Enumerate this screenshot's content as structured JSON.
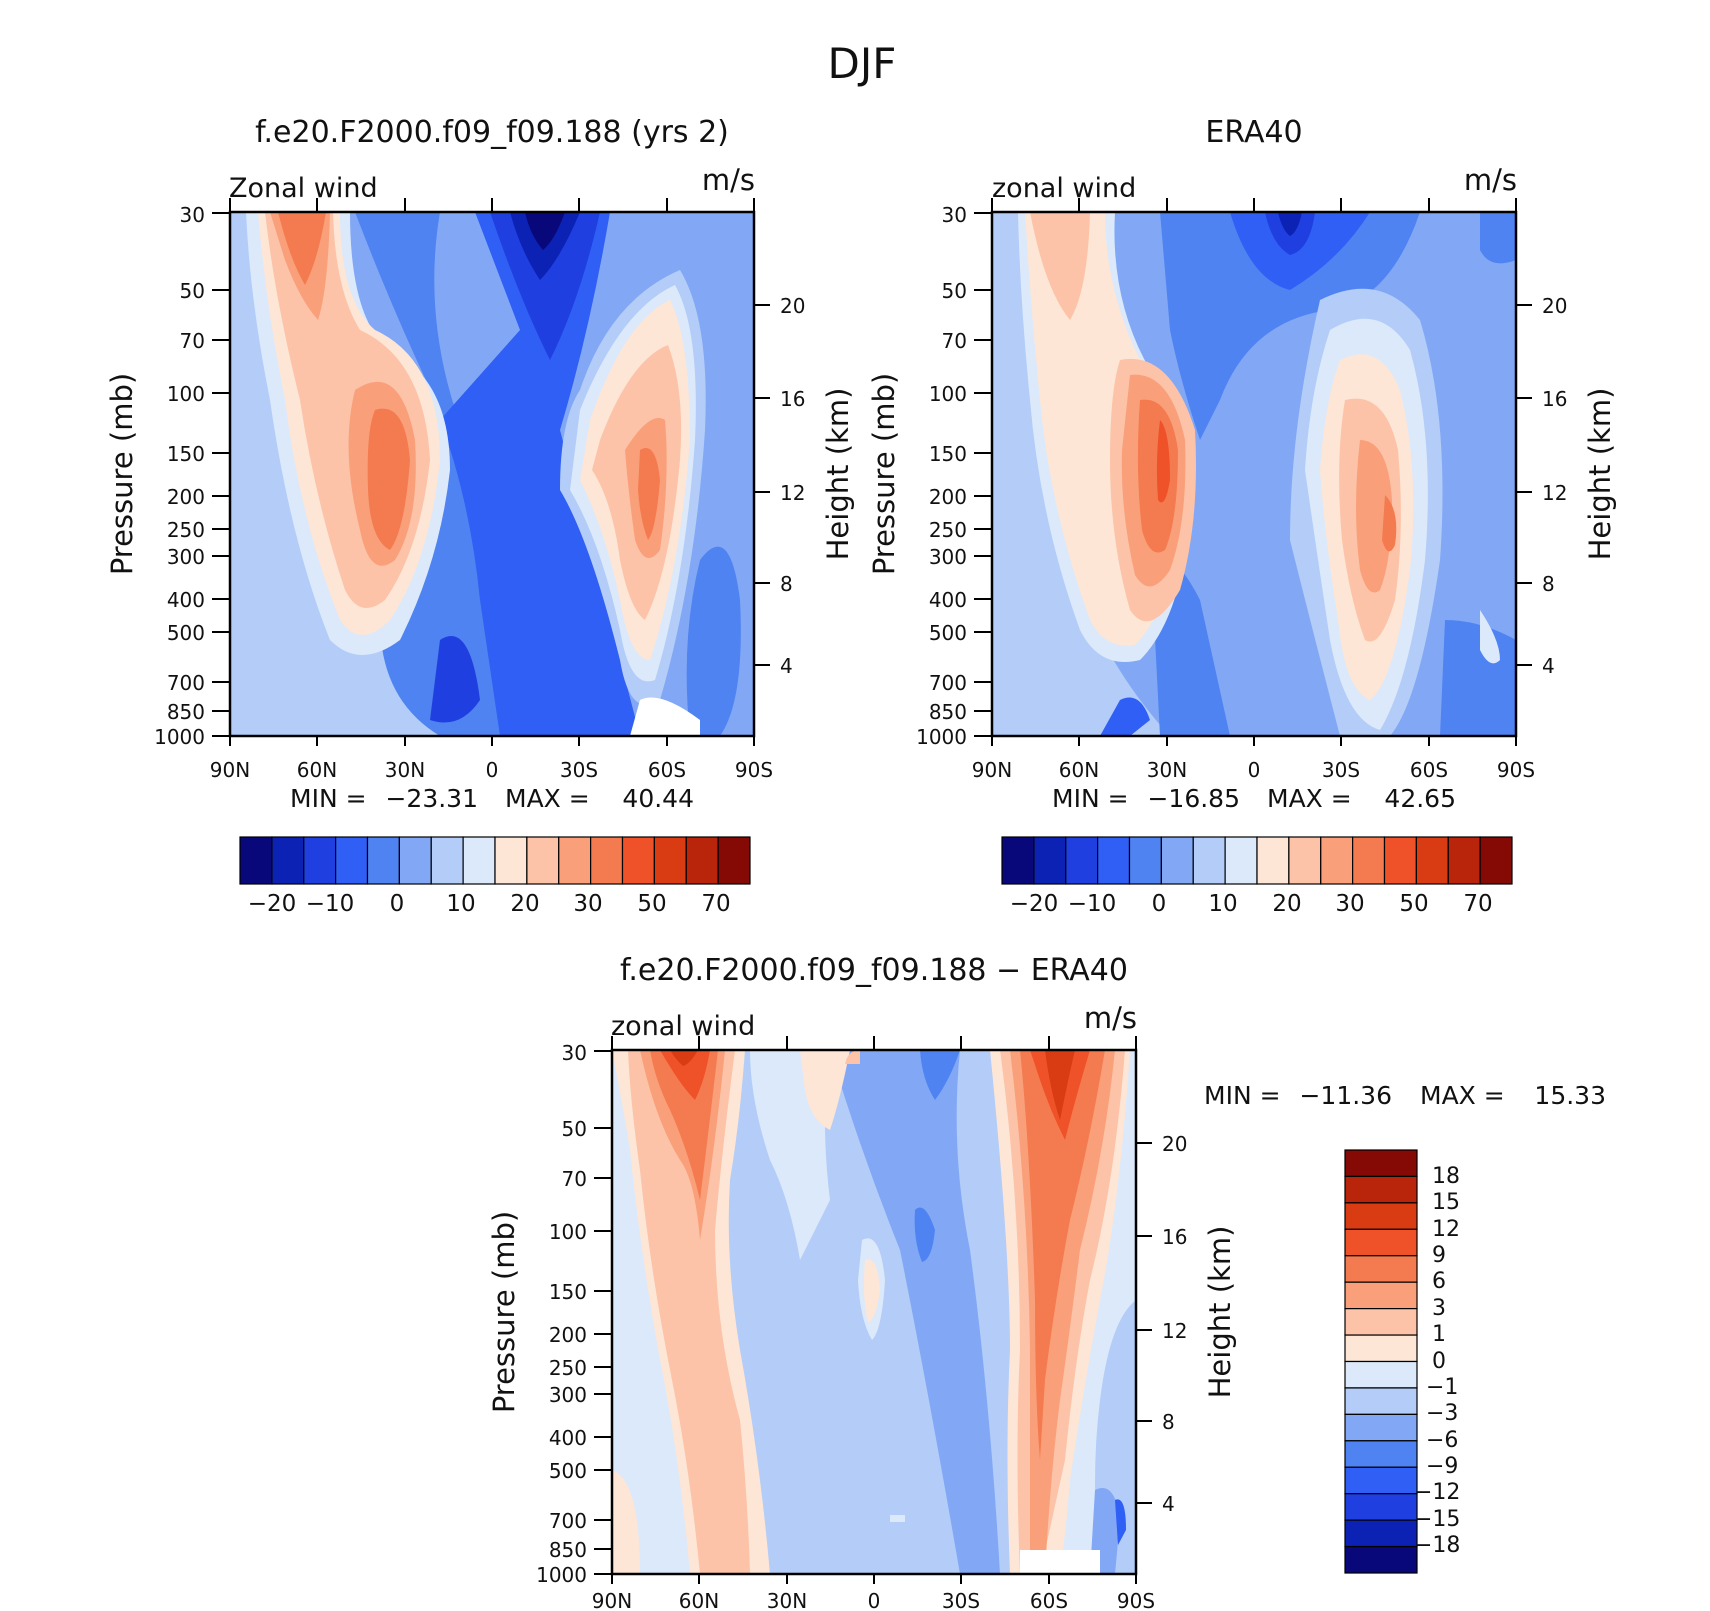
{
  "figure_title": "DJF",
  "colors": {
    "model_obs_scale": [
      "#08087a",
      "#0b22b5",
      "#1f3fe0",
      "#2f5ff4",
      "#4f83f2",
      "#82a8f5",
      "#b3cdf8",
      "#dbe9fb",
      "#fde6d6",
      "#fcc3a8",
      "#f9a07a",
      "#f47b50",
      "#ef5228",
      "#d93c12",
      "#b8250a",
      "#850a05"
    ],
    "diff_scale": [
      "#08087a",
      "#0b22b5",
      "#1f3fe0",
      "#2f5ff4",
      "#4f83f2",
      "#82a8f5",
      "#b3cdf8",
      "#dbe9fb",
      "#fde6d6",
      "#fcc3a8",
      "#f9a07a",
      "#f47b50",
      "#ef5228",
      "#d93c12",
      "#b8250a",
      "#850a05"
    ]
  },
  "chart_data": [
    {
      "type": "contour",
      "title": "f.e20.F2000.f09_f09.188 (yrs 2)",
      "variable_label": "Zonal wind",
      "units": "m/s",
      "ylabel": "Pressure (mb)",
      "ylabel_right": "Height (km)",
      "x_ticks": [
        "90N",
        "60N",
        "30N",
        "0",
        "30S",
        "60S",
        "90S"
      ],
      "x_range": [
        90,
        -90
      ],
      "y_ticks": [
        30,
        50,
        70,
        100,
        150,
        200,
        250,
        300,
        400,
        500,
        700,
        850,
        1000
      ],
      "y_range": [
        1000,
        30
      ],
      "y_scale": "log",
      "height_ticks": [
        4,
        8,
        12,
        16,
        20
      ],
      "stats": {
        "min_label": "MIN =",
        "min": "−23.31",
        "max_label": "MAX =",
        "max": "40.44"
      },
      "levels": [
        "−20",
        "−10",
        "0",
        "10",
        "20",
        "30",
        "50",
        "70"
      ],
      "features": [
        {
          "desc": "NH subtropical jet",
          "lat": 30,
          "p": 200,
          "value": 40
        },
        {
          "desc": "NH upper polar maximum",
          "lat": 68,
          "p": 40,
          "value": 30
        },
        {
          "desc": "SH subtropical jet",
          "lat": -47,
          "p": 220,
          "value": 38
        },
        {
          "desc": "Tropical easterlies",
          "lat": -15,
          "p": 30,
          "value": -23
        }
      ]
    },
    {
      "type": "contour",
      "title": "ERA40",
      "variable_label": "zonal wind",
      "units": "m/s",
      "ylabel": "Pressure (mb)",
      "ylabel_right": "Height (km)",
      "x_ticks": [
        "90N",
        "60N",
        "30N",
        "0",
        "30S",
        "60S",
        "90S"
      ],
      "x_range": [
        90,
        -90
      ],
      "y_ticks": [
        30,
        50,
        70,
        100,
        150,
        200,
        250,
        300,
        400,
        500,
        700,
        850,
        1000
      ],
      "y_range": [
        1000,
        30
      ],
      "y_scale": "log",
      "height_ticks": [
        4,
        8,
        12,
        16,
        20
      ],
      "stats": {
        "min_label": "MIN =",
        "min": "−16.85",
        "max_label": "MAX =",
        "max": "42.65"
      },
      "levels": [
        "−20",
        "−10",
        "0",
        "10",
        "20",
        "30",
        "50",
        "70"
      ],
      "features": [
        {
          "desc": "NH subtropical jet",
          "lat": 30,
          "p": 200,
          "value": 42
        },
        {
          "desc": "SH subtropical jet",
          "lat": -47,
          "p": 250,
          "value": 37
        },
        {
          "desc": "Tropical easterlies",
          "lat": -15,
          "p": 30,
          "value": -17
        }
      ]
    },
    {
      "type": "contour",
      "title": "f.e20.F2000.f09_f09.188 − ERA40",
      "variable_label": "zonal wind",
      "units": "m/s",
      "ylabel": "Pressure (mb)",
      "ylabel_right": "Height (km)",
      "x_ticks": [
        "90N",
        "60N",
        "30N",
        "0",
        "30S",
        "60S",
        "90S"
      ],
      "x_range": [
        90,
        -90
      ],
      "y_ticks": [
        30,
        50,
        70,
        100,
        150,
        200,
        250,
        300,
        400,
        500,
        700,
        850,
        1000
      ],
      "y_range": [
        1000,
        30
      ],
      "y_scale": "log",
      "height_ticks": [
        4,
        8,
        12,
        16,
        20
      ],
      "stats": {
        "min_label": "MIN =",
        "min": "−11.36",
        "max_label": "MAX =",
        "max": "15.33"
      },
      "levels": [
        "18",
        "15",
        "12",
        "9",
        "6",
        "3",
        "1",
        "0",
        "−1",
        "−3",
        "−6",
        "−9",
        "−12",
        "−15",
        "−18"
      ],
      "features": [
        {
          "desc": "NH high-latitude positive bias",
          "lat": 66,
          "p": 35,
          "value": 15
        },
        {
          "desc": "SH high-latitude positive bias",
          "lat": -62,
          "p": 45,
          "value": 15
        },
        {
          "desc": "Tropical negative bias",
          "lat": -5,
          "p": 40,
          "value": -9
        }
      ]
    }
  ]
}
